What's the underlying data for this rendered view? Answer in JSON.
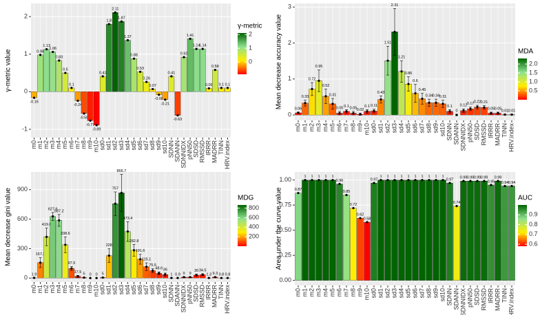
{
  "chart_data": [
    {
      "type": "bar",
      "y_label": "γ-metric value",
      "categories": [
        "m0",
        "m1",
        "m2",
        "m3",
        "m4",
        "m5",
        "m6",
        "m7",
        "m8",
        "m9",
        "m10",
        "sd0",
        "sd1",
        "sd2",
        "sd3",
        "sd4",
        "sd5",
        "sd6",
        "sd7",
        "sd8",
        "sd9",
        "sd10",
        "SDNN",
        "SDANN",
        "SDNNIDX",
        "pNN50",
        "SDSD",
        "RMSSD",
        "IRRR",
        "MADRR",
        "TINN",
        "HRV.index"
      ],
      "values": [
        -0.16,
        0.98,
        1.13,
        1.06,
        0.83,
        0.5,
        0.1,
        -0.24,
        -0.58,
        -0.77,
        -0.89,
        0.41,
        1.8,
        2.11,
        1.87,
        1.37,
        0.88,
        0.53,
        0.26,
        0.07,
        -0.08,
        -0.21,
        0.41,
        -0.63,
        0.92,
        1.41,
        1.14,
        1.14,
        0.09,
        0.58,
        0.1,
        0.1
      ],
      "ylim": [
        -1.22,
        2.35
      ],
      "yticks": [
        -1,
        0,
        1,
        2
      ],
      "grid": true,
      "colorscale": {
        "title": "γ-metric",
        "limits": [
          -0.89,
          2.11
        ],
        "colors": [
          "#ff0000",
          "#ffee00",
          "#8fe08f",
          "#006400"
        ],
        "ticks": [
          0,
          1,
          2
        ]
      }
    },
    {
      "type": "bar",
      "y_label": "Mean decrease accuracy value",
      "categories": [
        "m0",
        "m1",
        "m2",
        "m3",
        "m4",
        "m5",
        "m6",
        "m7",
        "m8",
        "m9",
        "m10",
        "sd0",
        "sd1",
        "sd2",
        "sd3",
        "sd4",
        "sd5",
        "sd6",
        "sd7",
        "sd8",
        "sd9",
        "sd10",
        "SDNN",
        "SDANN",
        "SDNNIDX",
        "pNN50",
        "SDSD",
        "RMSSD",
        "IRRR",
        "MADRR",
        "TINN",
        "HRV.index"
      ],
      "values": [
        0.06,
        0.33,
        0.72,
        0.95,
        0.52,
        0.31,
        0.05,
        0.1,
        0.05,
        0.02,
        0.1,
        0.11,
        0.43,
        1.51,
        2.31,
        1.21,
        0.86,
        0.6,
        0.45,
        0.34,
        0.34,
        0.31,
        0.1,
        0,
        0.12,
        0.17,
        0.22,
        0.21,
        0.05,
        0.05,
        0.01,
        0.01
      ],
      "errors": [
        0.02,
        0.08,
        0.18,
        0.3,
        0.2,
        0.15,
        0.05,
        0.05,
        0.05,
        0.03,
        0.05,
        0.05,
        0.1,
        0.4,
        0.65,
        0.3,
        0.2,
        0.25,
        0.15,
        0.1,
        0.1,
        0.1,
        0.05,
        0.02,
        0.05,
        0.05,
        0.05,
        0.05,
        0.03,
        0.03,
        0.01,
        0.01
      ],
      "ylim": [
        -0.15,
        3.1
      ],
      "yticks": [
        0,
        1,
        2,
        3
      ],
      "grid": true,
      "colorscale": {
        "title": "MDA",
        "limits": [
          0,
          2.31
        ],
        "colors": [
          "#ff0000",
          "#ffee00",
          "#8fe08f",
          "#006400"
        ],
        "ticks": [
          0.5,
          {
            "value": 1,
            "label": "1.0"
          },
          1.5,
          {
            "value": 2,
            "label": "2.0"
          }
        ]
      }
    },
    {
      "type": "bar",
      "y_label": "Mean decrease gini value",
      "categories": [
        "m0",
        "m1",
        "m2",
        "m3",
        "m4",
        "m5",
        "m6",
        "m7",
        "m8",
        "m9",
        "m10",
        "sd0",
        "sd1",
        "sd2",
        "sd3",
        "sd4",
        "sd5",
        "sd6",
        "sd7",
        "sd8",
        "sd9",
        "sd10",
        "SDNN",
        "SDANN",
        "SDNNIDX",
        "pNN50",
        "SDSD",
        "RMSSD",
        "IRRR",
        "MADRR",
        "TINN",
        "HRV.index"
      ],
      "values": [
        1.9,
        157.3,
        419.6,
        627.6,
        587.2,
        338.6,
        97.5,
        17.5,
        5,
        0,
        0,
        5,
        228,
        757,
        866.7,
        473.4,
        282.8,
        191.6,
        115.1,
        75.5,
        48.6,
        36,
        1,
        0.9,
        9,
        9,
        30,
        34.5,
        1.3,
        9.3,
        0.8,
        0.8
      ],
      "errors": [
        1,
        50,
        90,
        40,
        60,
        80,
        20,
        10,
        3,
        0,
        0,
        3,
        70,
        120,
        190,
        100,
        60,
        50,
        40,
        20,
        15,
        15,
        1,
        1,
        4,
        4,
        10,
        10,
        1,
        4,
        1,
        1
      ],
      "ylim": [
        -40,
        1080
      ],
      "yticks": [
        0,
        300,
        600,
        900
      ],
      "grid": true,
      "colorscale": {
        "title": "MDG",
        "limits": [
          0,
          866.7
        ],
        "colors": [
          "#ff0000",
          "#ffee00",
          "#8fe08f",
          "#006400"
        ],
        "ticks": [
          200,
          400,
          600,
          800
        ]
      }
    },
    {
      "type": "bar",
      "y_label": "Area under the curve value",
      "categories": [
        "m0",
        "m1",
        "m2",
        "m3",
        "m4",
        "m5",
        "m6",
        "m7",
        "m8",
        "m9",
        "m10",
        "sd0",
        "sd1",
        "sd2",
        "sd3",
        "sd4",
        "sd5",
        "sd6",
        "sd7",
        "sd8",
        "sd9",
        "sd10",
        "SDNN",
        "SDANN",
        "SDNNIDX",
        "pNN50",
        "SDSD",
        "RMSSD",
        "IRRR",
        "MADRR",
        "TINN",
        "HRV.index"
      ],
      "values": [
        0.87,
        1,
        1,
        1,
        1,
        1,
        0.96,
        0.85,
        0.72,
        0.62,
        0.58,
        0.97,
        1,
        1,
        1,
        1,
        1,
        1,
        1,
        1,
        1,
        1,
        0.97,
        0.74,
        0.99,
        0.99,
        0.99,
        0.99,
        0.95,
        0.99,
        0.94,
        0.94
      ],
      "ylim": [
        -0.05,
        1.08
      ],
      "yticks": [
        {
          "value": 0,
          "label": "0.00"
        },
        {
          "value": 0.25,
          "label": "0.25"
        },
        {
          "value": 0.5,
          "label": "0.50"
        },
        {
          "value": 0.75,
          "label": "0.75"
        },
        {
          "value": 1,
          "label": "1.00"
        }
      ],
      "grid": true,
      "colorscale": {
        "title": "AUC",
        "limits": [
          0.58,
          1
        ],
        "colors": [
          "#ff0000",
          "#ffee00",
          "#8fe08f",
          "#006400"
        ],
        "ticks": [
          0.6,
          0.7,
          0.8,
          0.9
        ]
      }
    }
  ]
}
